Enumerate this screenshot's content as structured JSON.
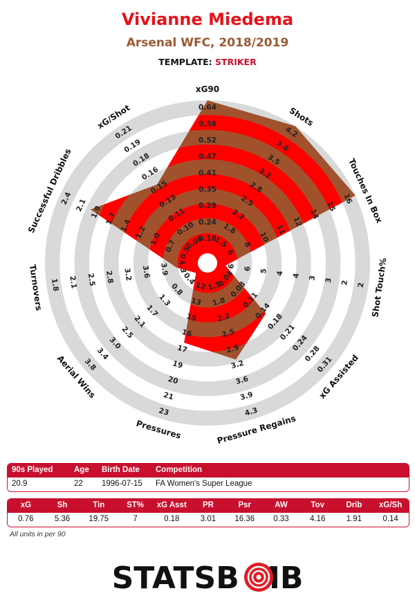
{
  "header": {
    "player": "Vivianne Miedema",
    "team_season": "Arsenal WFC, 2018/2019",
    "template_label": "TEMPLATE:",
    "template_name": "STRIKER"
  },
  "chart_data": {
    "type": "radar",
    "rings": 5,
    "colors": {
      "fill": "#a0522d",
      "ring_a": "#ff0000",
      "ring_b": "#9f5130",
      "track": "#d9d9d9"
    },
    "axes": [
      {
        "label": "xG90",
        "value": 0.76,
        "ticks": [
          "0.18",
          "0.24",
          "0.29",
          "0.35",
          "0.41",
          "0.47",
          "0.52",
          "0.58",
          "0.64"
        ]
      },
      {
        "label": "Shots",
        "value": 5.36,
        "ticks": [
          "1.5",
          "1.8",
          "2.2",
          "2.5",
          "2.8",
          "3.2",
          "3.5",
          "3.8",
          "4.2"
        ]
      },
      {
        "label": "Touches In Box",
        "value": 19.75,
        "ticks": [
          "6",
          "8",
          "10",
          "11",
          "12",
          "14",
          "15",
          "16"
        ]
      },
      {
        "label": "Shot Touch%",
        "value": 7,
        "ticks": [
          "6",
          "6",
          "5",
          "4",
          "4",
          "3",
          "3",
          "2",
          "2"
        ]
      },
      {
        "label": "xG Assisted",
        "value": 0.18,
        "ticks": [
          "0.04",
          "0.08",
          "0.11",
          "0.14",
          "0.18",
          "0.21",
          "0.24",
          "0.28",
          "0.31"
        ]
      },
      {
        "label": "Pressure Regains",
        "value": 3.01,
        "ticks": [
          "1.5",
          "1.8",
          "2.2",
          "2.5",
          "2.9",
          "3.2",
          "3.6",
          "3.9",
          "4.3"
        ]
      },
      {
        "label": "Pressures",
        "value": 16.36,
        "ticks": [
          "12",
          "13",
          "15",
          "16",
          "17",
          "19",
          "20",
          "21",
          "23"
        ]
      },
      {
        "label": "Aerial Wins",
        "value": 0.33,
        "ticks": [
          "0.4",
          "0.8",
          "1.3",
          "1.7",
          "2.1",
          "2.5",
          "3.0",
          "3.4",
          "3.8"
        ]
      },
      {
        "label": "Turnovers",
        "value": 4.16,
        "ticks": [
          "4.3",
          "3.9",
          "3.6",
          "3.2",
          "2.8",
          "2.5",
          "2.1",
          "1.8"
        ]
      },
      {
        "label": "Successful Dribbles",
        "value": 1.91,
        "ticks": [
          "0.5",
          "0.7",
          "1.0",
          "1.2",
          "1.4",
          "1.7",
          "1.9",
          "2.1",
          "2.4"
        ]
      },
      {
        "label": "xG/Shot",
        "value": 0.14,
        "ticks": [
          "0.08",
          "0.10",
          "0.11",
          "0.13",
          "0.15",
          "0.16",
          "0.18",
          "0.19",
          "0.21"
        ]
      }
    ],
    "fill_levels": [
      1.0,
      1.0,
      1.0,
      0.02,
      0.42,
      0.58,
      0.46,
      0.0,
      0.11,
      0.77,
      0.53
    ]
  },
  "info_table": {
    "headers": [
      "90s Played",
      "Age",
      "Birth Date",
      "Competition"
    ],
    "values": [
      "20.9",
      "22",
      "1996-07-15",
      "FA Women's Super League"
    ]
  },
  "stats_table": {
    "headers": [
      "xG",
      "Sh",
      "Tin",
      "ST%",
      "xG Asst",
      "PR",
      "Psr",
      "AW",
      "Tov",
      "Drib",
      "xG/Sh"
    ],
    "values": [
      "0.76",
      "5.36",
      "19.75",
      "7",
      "0.18",
      "3.01",
      "16.36",
      "0.33",
      "4.16",
      "1.91",
      "0.14"
    ]
  },
  "footnote": "All units in per 90",
  "logo": {
    "text_left": "STATSB",
    "text_right": "MB"
  }
}
